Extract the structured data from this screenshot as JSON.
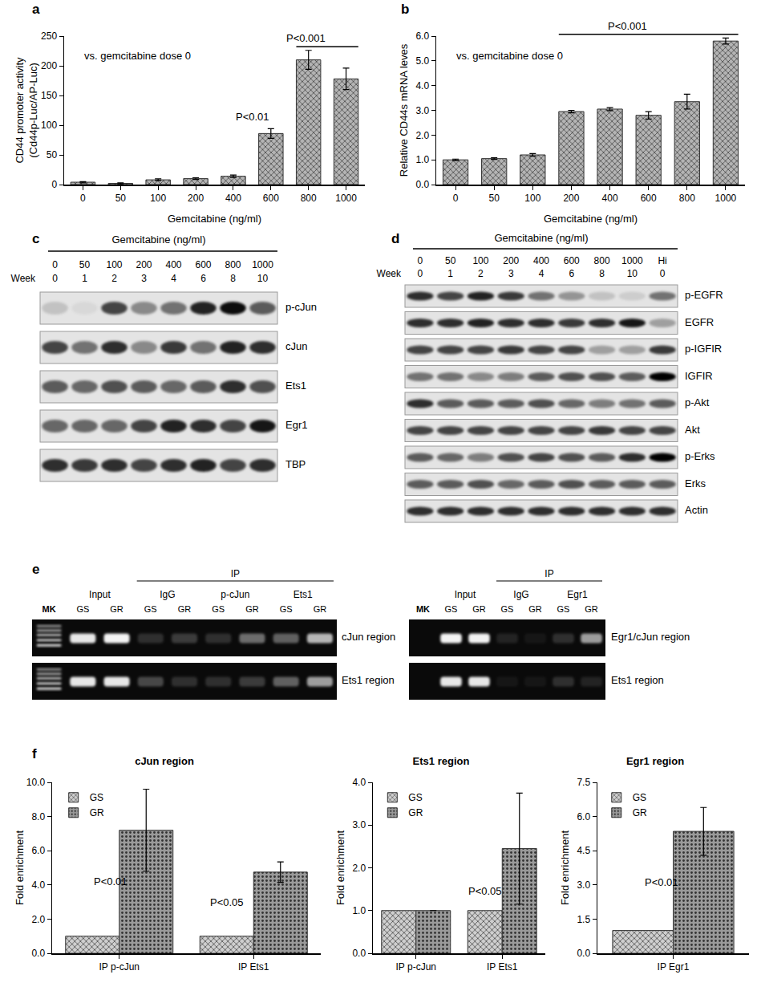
{
  "panel_labels": [
    "a",
    "b",
    "c",
    "d",
    "e",
    "f"
  ],
  "chart_data": [
    {
      "type": "bar",
      "categories": [
        "0",
        "50",
        "100",
        "200",
        "400",
        "600",
        "800",
        "1000"
      ],
      "values": [
        4,
        2,
        8,
        10,
        14,
        86,
        210,
        178
      ],
      "errors": [
        1,
        1,
        1.5,
        1.5,
        2,
        8,
        16,
        18
      ],
      "color": "#b4b4b4",
      "x_label": "Gemcitabine (ng/ml)",
      "y_label": [
        "CD44 promoter activity",
        "(Cd44p-Luc/AP-Luc)"
      ],
      "ylim": [
        0,
        250
      ],
      "yticks": [
        0,
        50,
        100,
        150,
        200,
        250
      ],
      "note": "vs. gemcitabine dose 0",
      "annotations": [
        {
          "text": "P<0.01",
          "from": "600",
          "to": "600"
        },
        {
          "text": "P<0.001",
          "from": "800",
          "to": "1000"
        }
      ]
    },
    {
      "type": "bar",
      "categories": [
        "0",
        "50",
        "100",
        "200",
        "400",
        "600",
        "800",
        "1000"
      ],
      "values": [
        1.0,
        1.05,
        1.2,
        2.95,
        3.05,
        2.8,
        3.35,
        5.8
      ],
      "errors": [
        0.03,
        0.03,
        0.05,
        0.05,
        0.06,
        0.15,
        0.3,
        0.12
      ],
      "color": "#b4b4b4",
      "x_label": "Gemcitabine (ng/ml)",
      "y_label": [
        "Relative CD44s mRNA leves"
      ],
      "ylim": [
        0,
        6
      ],
      "yticks": [
        {
          "value": 0,
          "label": "0.0"
        },
        {
          "value": 1,
          "label": "1.0"
        },
        {
          "value": 2,
          "label": "2.0"
        },
        {
          "value": 3,
          "label": "3.0"
        },
        {
          "value": 4,
          "label": "4.0"
        },
        {
          "value": 5,
          "label": "5.0"
        },
        {
          "value": 6,
          "label": "6.0"
        }
      ],
      "note": "vs. gemcitabine dose 0",
      "annotations": [
        {
          "text": "P<0.001",
          "from": "200",
          "to": "1000"
        }
      ]
    },
    {
      "type": "bar",
      "title": "cJun region",
      "categories": [
        "IP p-cJun",
        "IP Ets1"
      ],
      "series": [
        {
          "name": "GS",
          "color": "#cfcfcf",
          "values": [
            1,
            1
          ]
        },
        {
          "name": "GR",
          "color": "#9a9a9a",
          "values": [
            7.2,
            4.75
          ],
          "errors": [
            2.4,
            0.6
          ]
        }
      ],
      "y_label": [
        "Fold enrichment"
      ],
      "legend": "top left",
      "ylim": [
        0,
        10
      ],
      "yticks": [
        {
          "value": 0,
          "label": "0.0"
        },
        {
          "value": 2,
          "label": "2.0"
        },
        {
          "value": 4,
          "label": "4.0"
        },
        {
          "value": 6,
          "label": "6.0"
        },
        {
          "value": 8,
          "label": "8.0"
        },
        {
          "value": 10,
          "label": "10.0"
        }
      ],
      "annotations": [
        {
          "text": "P<0.01",
          "category": "IP p-cJun"
        },
        {
          "text": "P<0.05",
          "category": "IP Ets1"
        }
      ]
    },
    {
      "type": "bar",
      "title": "Ets1 region",
      "categories": [
        "IP p-cJun",
        "IP Ets1"
      ],
      "series": [
        {
          "name": "GS",
          "color": "#cfcfcf",
          "values": [
            1,
            1
          ]
        },
        {
          "name": "GR",
          "color": "#9a9a9a",
          "values": [
            1,
            2.45
          ],
          "errors": [
            0,
            1.3
          ]
        }
      ],
      "y_label": [
        "Fold enrichment"
      ],
      "legend": "top left",
      "ylim": [
        0,
        4
      ],
      "yticks": [
        {
          "value": 0,
          "label": "0.0"
        },
        {
          "value": 1,
          "label": "1.0"
        },
        {
          "value": 2,
          "label": "2.0"
        },
        {
          "value": 3,
          "label": "3.0"
        },
        {
          "value": 4,
          "label": "4.0"
        }
      ],
      "annotations": [
        {
          "text": "P<0.05",
          "category": "IP Ets1"
        }
      ]
    },
    {
      "type": "bar",
      "title": "Egr1 region",
      "categories": [
        "IP Egr1"
      ],
      "series": [
        {
          "name": "GS",
          "color": "#cfcfcf",
          "values": [
            1
          ]
        },
        {
          "name": "GR",
          "color": "#9a9a9a",
          "values": [
            5.35
          ],
          "errors": [
            1.05
          ]
        }
      ],
      "y_label": [
        "Fold enrichment"
      ],
      "legend": "top left",
      "ylim": [
        0,
        7.5
      ],
      "yticks": [
        {
          "value": 0,
          "label": "0.0"
        },
        {
          "value": 1.5,
          "label": "1.5"
        },
        {
          "value": 3,
          "label": "3.0"
        },
        {
          "value": 4.5,
          "label": "4.5"
        },
        {
          "value": 6,
          "label": "6.0"
        },
        {
          "value": 7.5,
          "label": "7.5"
        }
      ],
      "annotations": [
        {
          "text": "P<0.01",
          "category": "IP Egr1"
        }
      ]
    }
  ],
  "blots": [
    {
      "header": "Gemcitabine (ng/ml)",
      "doses": [
        "0",
        "50",
        "100",
        "200",
        "400",
        "600",
        "800",
        "1000"
      ],
      "week_label": "Week",
      "weeks": [
        "0",
        "1",
        "2",
        "3",
        "4",
        "6",
        "8",
        "10"
      ],
      "rows": [
        {
          "label": "p-cJun",
          "bands": [
            0.15,
            0.05,
            0.7,
            0.4,
            0.5,
            0.85,
            0.95,
            0.6
          ]
        },
        {
          "label": "cJun",
          "bands": [
            0.7,
            0.5,
            0.8,
            0.4,
            0.75,
            0.5,
            0.85,
            0.8
          ]
        },
        {
          "label": "Ets1",
          "bands": [
            0.6,
            0.55,
            0.65,
            0.6,
            0.55,
            0.6,
            0.8,
            0.65
          ]
        },
        {
          "label": "Egr1",
          "bands": [
            0.55,
            0.55,
            0.55,
            0.7,
            0.85,
            0.8,
            0.7,
            0.9
          ]
        },
        {
          "label": "TBP",
          "bands": [
            0.8,
            0.75,
            0.8,
            0.7,
            0.8,
            0.85,
            0.7,
            0.8
          ]
        }
      ]
    },
    {
      "header": "Gemcitabine (ng/ml)",
      "doses": [
        "0",
        "50",
        "100",
        "200",
        "400",
        "600",
        "800",
        "1000",
        "Hi"
      ],
      "week_label": "Week",
      "weeks": [
        "0",
        "1",
        "2",
        "3",
        "4",
        "6",
        "8",
        "10",
        "0"
      ],
      "rows": [
        {
          "label": "p-EGFR",
          "bands": [
            0.8,
            0.7,
            0.85,
            0.75,
            0.5,
            0.35,
            0.15,
            0.1,
            0.5
          ]
        },
        {
          "label": "EGFR",
          "bands": [
            0.8,
            0.8,
            0.85,
            0.8,
            0.8,
            0.75,
            0.8,
            0.9,
            0.3
          ]
        },
        {
          "label": "p-IGFIR",
          "bands": [
            0.7,
            0.7,
            0.7,
            0.75,
            0.7,
            0.7,
            0.3,
            0.3,
            0.75
          ]
        },
        {
          "label": "IGFIR",
          "bands": [
            0.5,
            0.5,
            0.4,
            0.45,
            0.6,
            0.65,
            0.65,
            0.6,
            1.0
          ]
        },
        {
          "label": "p-Akt",
          "bands": [
            0.8,
            0.6,
            0.6,
            0.6,
            0.65,
            0.55,
            0.45,
            0.5,
            0.6
          ]
        },
        {
          "label": "Akt",
          "bands": [
            0.7,
            0.7,
            0.7,
            0.7,
            0.7,
            0.7,
            0.75,
            0.7,
            0.7
          ]
        },
        {
          "label": "p-Erks",
          "bands": [
            0.6,
            0.55,
            0.45,
            0.65,
            0.7,
            0.65,
            0.6,
            0.8,
            1.0
          ]
        },
        {
          "label": "Erks",
          "bands": [
            0.6,
            0.6,
            0.65,
            0.55,
            0.6,
            0.65,
            0.6,
            0.6,
            0.6
          ]
        },
        {
          "label": "Actin",
          "bands": [
            0.8,
            0.8,
            0.8,
            0.8,
            0.8,
            0.8,
            0.8,
            0.8,
            0.8
          ]
        }
      ]
    }
  ],
  "gels": [
    {
      "lanes": [
        {
          "label": "MK"
        },
        {
          "label": "GS",
          "group": "Input"
        },
        {
          "label": "GR",
          "group": "Input"
        },
        {
          "label": "GS",
          "group": "IgG",
          "super": "IP"
        },
        {
          "label": "GR",
          "group": "IgG",
          "super": "IP"
        },
        {
          "label": "GS",
          "group": "p-cJun",
          "super": "IP"
        },
        {
          "label": "GR",
          "group": "p-cJun",
          "super": "IP"
        },
        {
          "label": "GS",
          "group": "Ets1",
          "super": "IP"
        },
        {
          "label": "GR",
          "group": "Ets1",
          "super": "IP"
        }
      ],
      "rows": [
        {
          "label": "cJun region",
          "bands": [
            null,
            0.9,
            0.95,
            0.15,
            0.2,
            0.15,
            0.4,
            0.35,
            0.7
          ]
        },
        {
          "label": "Ets1 region",
          "bands": [
            null,
            0.9,
            0.9,
            0.25,
            0.15,
            0.15,
            0.2,
            0.35,
            0.6
          ]
        }
      ]
    },
    {
      "lanes": [
        {
          "label": "MK"
        },
        {
          "label": "GS",
          "group": "Input"
        },
        {
          "label": "GR",
          "group": "Input"
        },
        {
          "label": "GS",
          "group": "IgG",
          "super": "IP"
        },
        {
          "label": "GR",
          "group": "IgG",
          "super": "IP"
        },
        {
          "label": "GS",
          "group": "Egr1",
          "super": "IP"
        },
        {
          "label": "GR",
          "group": "Egr1",
          "super": "IP"
        }
      ],
      "rows": [
        {
          "label": "Egr1/cJun region",
          "bands": [
            0,
            0.95,
            0.95,
            0.1,
            0.05,
            0.15,
            0.6
          ]
        },
        {
          "label": "Ets1 region",
          "bands": [
            0,
            0.9,
            0.9,
            0.05,
            0.05,
            0.15,
            0.1
          ]
        }
      ]
    }
  ]
}
